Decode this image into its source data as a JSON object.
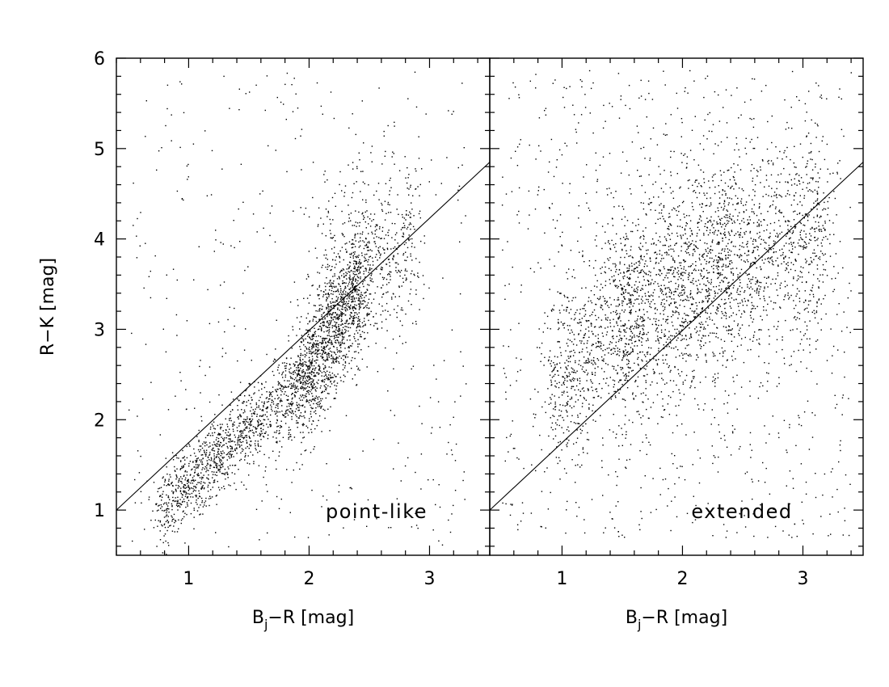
{
  "chart_data": [
    {
      "type": "scatter",
      "panel_label": "point-like",
      "xlabel": {
        "main": "B",
        "sub": "j",
        "rest": "−R  [mag]"
      },
      "ylabel": "R−K  [mag]",
      "xlim": [
        0.4,
        3.5
      ],
      "ylim": [
        0.5,
        6.0
      ],
      "x_major_ticks": [
        1,
        2,
        3
      ],
      "y_major_ticks": [
        1,
        2,
        3,
        4,
        5,
        6
      ],
      "x_minor_step": 0.2,
      "y_minor_step": 0.2,
      "line": {
        "x": [
          0.4,
          3.5
        ],
        "y": [
          1.0,
          4.85
        ]
      },
      "point_clusters": [
        {
          "x_range": [
            0.75,
            1.25
          ],
          "y_center_at_x_min": 1.0,
          "slope": 1.25,
          "y_spread": 0.22,
          "count": 550
        },
        {
          "x_range": [
            1.25,
            1.9
          ],
          "y_center_at_x_min": 1.62,
          "slope": 1.15,
          "y_spread": 0.22,
          "count": 650
        },
        {
          "x_range": [
            1.9,
            2.45
          ],
          "y_center_at_x_min": 2.35,
          "slope": 2.2,
          "y_spread": 0.35,
          "count": 1300
        },
        {
          "x_range": [
            2.1,
            2.9
          ],
          "y_center_at_x_min": 3.5,
          "slope": 0.6,
          "y_spread": 0.5,
          "count": 600
        }
      ],
      "scatter_background": {
        "x_range": [
          0.5,
          3.3
        ],
        "y_range": [
          0.6,
          5.9
        ],
        "count": 420
      }
    },
    {
      "type": "scatter",
      "panel_label": "extended",
      "xlabel": {
        "main": "B",
        "sub": "j",
        "rest": "−R  [mag]"
      },
      "ylabel": "",
      "xlim": [
        0.4,
        3.5
      ],
      "ylim": [
        0.5,
        6.0
      ],
      "x_major_ticks": [
        1,
        2,
        3
      ],
      "y_major_ticks": [
        1,
        2,
        3,
        4,
        5,
        6
      ],
      "x_minor_step": 0.2,
      "y_minor_step": 0.2,
      "line": {
        "x": [
          0.4,
          3.5
        ],
        "y": [
          1.0,
          4.85
        ]
      },
      "point_clusters": [
        {
          "x_range": [
            0.9,
            1.6
          ],
          "y_center_at_x_min": 2.4,
          "slope": 1.1,
          "y_spread": 0.55,
          "count": 700
        },
        {
          "x_range": [
            1.5,
            2.4
          ],
          "y_center_at_x_min": 3.1,
          "slope": 0.75,
          "y_spread": 0.6,
          "count": 1300
        },
        {
          "x_range": [
            2.3,
            3.2
          ],
          "y_center_at_x_min": 3.75,
          "slope": 0.25,
          "y_spread": 0.55,
          "count": 900
        }
      ],
      "scatter_background": {
        "x_range": [
          0.5,
          3.4
        ],
        "y_range": [
          0.7,
          5.9
        ],
        "count": 900
      }
    }
  ]
}
